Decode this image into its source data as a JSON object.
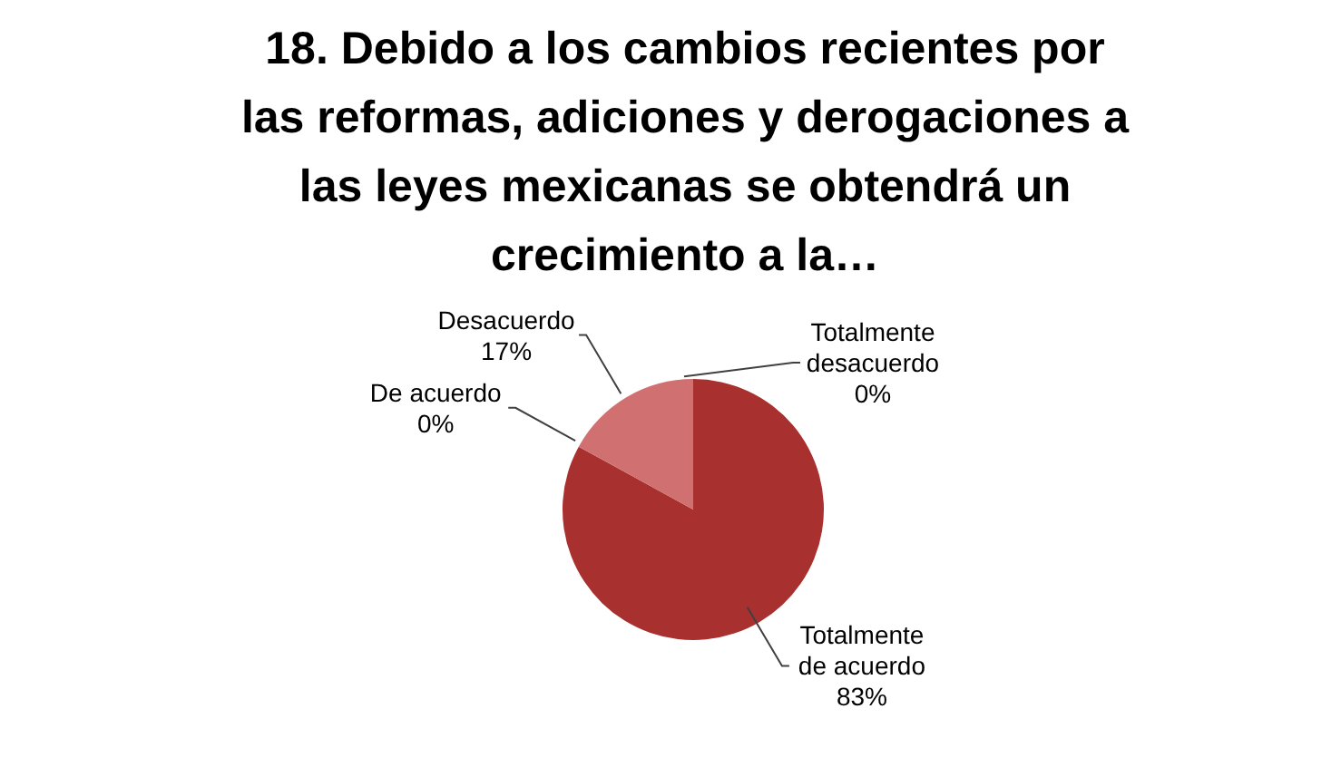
{
  "chart_data": {
    "type": "pie",
    "title": "18. Debido a los cambios recientes por las reformas, adiciones y derogaciones a las leyes mexicanas se obtendrá un crecimiento a la…",
    "categories": [
      "Totalmente de acuerdo",
      "De acuerdo",
      "Desacuerdo",
      "Totalmente desacuerdo"
    ],
    "values": [
      83,
      0,
      17,
      0
    ],
    "value_labels": [
      "83%",
      "0%",
      "17%",
      "0%"
    ],
    "colors": [
      "#a8302e",
      "#c0504d",
      "#d07070",
      "#e6a0a0"
    ],
    "legend": false
  }
}
